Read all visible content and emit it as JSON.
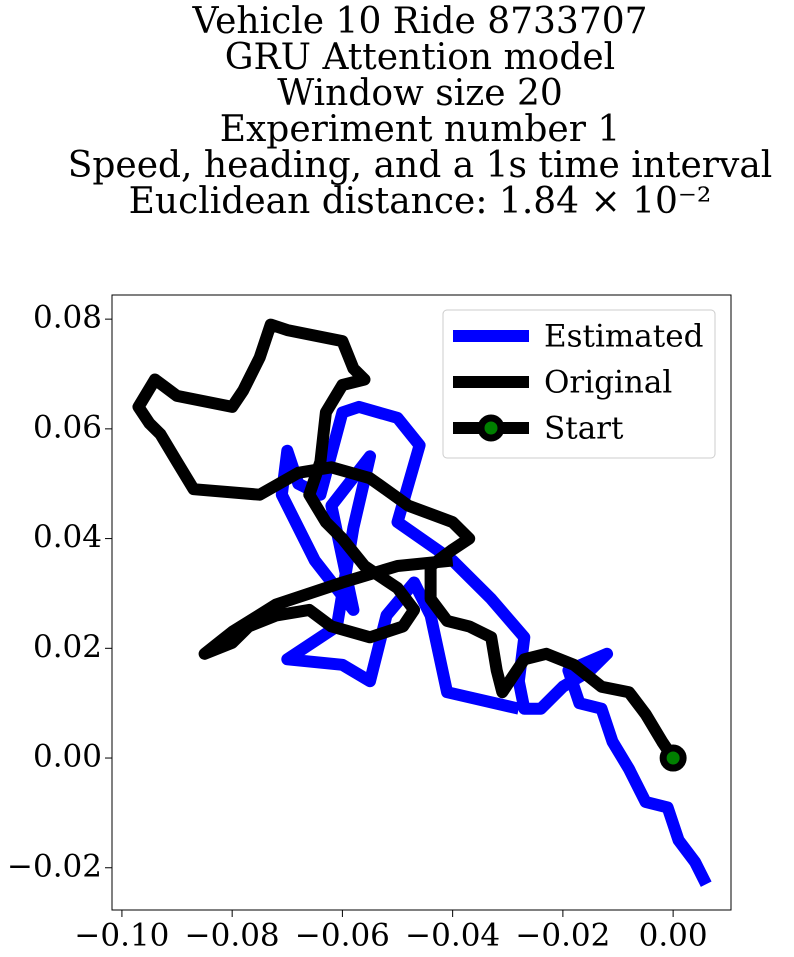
{
  "chart_data": {
    "type": "line",
    "title": [
      "Vehicle 10 Ride 8733707",
      "GRU Attention model",
      "Window size 20",
      "Experiment number 1",
      "Speed, heading, and a 1s time interval",
      "Euclidean distance: 1.84 × 10⁻²"
    ],
    "xlim": [
      -0.1018,
      0.0105
    ],
    "ylim": [
      -0.0277,
      0.0844
    ],
    "xticks": [
      {
        "value": -0.1,
        "label": "−0.10"
      },
      {
        "value": -0.08,
        "label": "−0.08"
      },
      {
        "value": -0.06,
        "label": "−0.06"
      },
      {
        "value": -0.04,
        "label": "−0.04"
      },
      {
        "value": -0.02,
        "label": "−0.02"
      },
      {
        "value": 0,
        "label": "0.00"
      }
    ],
    "yticks": [
      {
        "value": -0.02,
        "label": "−0.02"
      },
      {
        "value": 0,
        "label": "0.00"
      },
      {
        "value": 0.02,
        "label": "0.02"
      },
      {
        "value": 0.04,
        "label": "0.04"
      },
      {
        "value": 0.06,
        "label": "0.06"
      },
      {
        "value": 0.08,
        "label": "0.08"
      }
    ],
    "legend": "upper right",
    "series": [
      {
        "name": "Estimated",
        "color": "#0000ff",
        "x": [
          0.006,
          0.004,
          0.001,
          -0.001,
          -0.005,
          -0.008,
          -0.011,
          -0.013,
          -0.017,
          -0.019,
          -0.012,
          -0.015,
          -0.02,
          -0.024,
          -0.027,
          -0.028,
          -0.027,
          -0.033,
          -0.04,
          -0.05,
          -0.046,
          -0.05,
          -0.057,
          -0.06,
          -0.064,
          -0.068,
          -0.07,
          -0.071,
          -0.065,
          -0.058,
          -0.062,
          -0.055,
          -0.058,
          -0.061,
          -0.07,
          -0.06,
          -0.055,
          -0.052,
          -0.047,
          -0.044,
          -0.041,
          -0.028
        ],
        "y": [
          -0.023,
          -0.019,
          -0.015,
          -0.009,
          -0.008,
          -0.002,
          0.003,
          0.009,
          0.01,
          0.016,
          0.019,
          0.016,
          0.013,
          0.009,
          0.009,
          0.014,
          0.022,
          0.029,
          0.036,
          0.043,
          0.057,
          0.062,
          0.064,
          0.063,
          0.048,
          0.05,
          0.056,
          0.048,
          0.036,
          0.027,
          0.046,
          0.055,
          0.042,
          0.024,
          0.018,
          0.017,
          0.014,
          0.026,
          0.032,
          0.026,
          0.012,
          0.009
        ]
      },
      {
        "name": "Original",
        "color": "#000000",
        "x": [
          0,
          -0.002,
          -0.005,
          -0.008,
          -0.013,
          -0.018,
          -0.023,
          -0.027,
          -0.029,
          -0.031,
          -0.032,
          -0.033,
          -0.037,
          -0.041,
          -0.044,
          -0.044,
          -0.04,
          -0.037,
          -0.04,
          -0.048,
          -0.055,
          -0.062,
          -0.068,
          -0.075,
          -0.087,
          -0.09,
          -0.093,
          -0.095,
          -0.097,
          -0.094,
          -0.09,
          -0.085,
          -0.08,
          -0.078,
          -0.075,
          -0.073,
          -0.07,
          -0.065,
          -0.06,
          -0.058,
          -0.056,
          -0.06,
          -0.063,
          -0.064,
          -0.066,
          -0.063,
          -0.06,
          -0.056,
          -0.05,
          -0.047,
          -0.049,
          -0.055,
          -0.062,
          -0.066,
          -0.072,
          -0.077,
          -0.08,
          -0.085,
          -0.08,
          -0.072,
          -0.06,
          -0.05,
          -0.04
        ],
        "y": [
          0,
          0.003,
          0.008,
          0.012,
          0.013,
          0.017,
          0.019,
          0.018,
          0.015,
          0.012,
          0.016,
          0.022,
          0.024,
          0.025,
          0.029,
          0.035,
          0.038,
          0.04,
          0.043,
          0.046,
          0.051,
          0.053,
          0.052,
          0.048,
          0.049,
          0.054,
          0.059,
          0.061,
          0.064,
          0.069,
          0.066,
          0.065,
          0.064,
          0.067,
          0.073,
          0.079,
          0.078,
          0.077,
          0.076,
          0.071,
          0.069,
          0.068,
          0.063,
          0.054,
          0.048,
          0.043,
          0.04,
          0.035,
          0.031,
          0.027,
          0.024,
          0.022,
          0.024,
          0.027,
          0.026,
          0.024,
          0.021,
          0.019,
          0.023,
          0.028,
          0.032,
          0.035,
          0.036
        ]
      },
      {
        "name": "Start",
        "color": "#000000",
        "marker": "circle",
        "marker_color": "#008000",
        "x": [
          0
        ],
        "y": [
          0
        ]
      }
    ]
  }
}
